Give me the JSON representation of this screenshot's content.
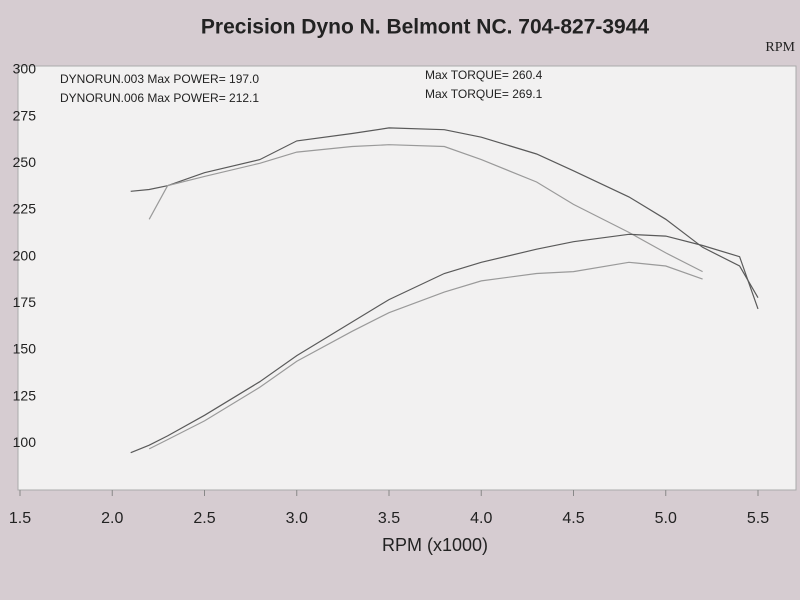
{
  "chart_data": {
    "type": "line",
    "title": "Precision Dyno  N. Belmont NC. 704-827-3944",
    "corner_label": "RPM",
    "x_label": "RPM (x1000)",
    "annotations": [
      "DYNORUN.003  Max POWER= 197.0",
      "Max TORQUE= 260.4",
      "DYNORUN.006  Max POWER= 212.1",
      "Max TORQUE= 269.1"
    ],
    "x": [
      2.1,
      2.2,
      2.3,
      2.5,
      2.8,
      3.0,
      3.3,
      3.5,
      3.8,
      4.0,
      4.3,
      4.5,
      4.8,
      5.0,
      5.2,
      5.4,
      5.5
    ],
    "series": [
      {
        "color": "#5a5a5a",
        "values": [
          235,
          236,
          238,
          245,
          252,
          262,
          266,
          269,
          268,
          264,
          255,
          246,
          232,
          220,
          205,
          195,
          178
        ]
      },
      {
        "color": "#9a9a9a",
        "values": [
          null,
          220,
          238,
          243,
          250,
          256,
          259,
          260,
          259,
          252,
          240,
          228,
          213,
          202,
          192,
          null,
          null
        ]
      },
      {
        "color": "#5a5a5a",
        "values": [
          95,
          99,
          104,
          115,
          133,
          147,
          165,
          177,
          191,
          197,
          204,
          208,
          212,
          211,
          206,
          200,
          172
        ]
      },
      {
        "color": "#9a9a9a",
        "values": [
          null,
          97,
          102,
          112,
          130,
          144,
          160,
          170,
          181,
          187,
          191,
          192,
          197,
          195,
          188,
          null,
          null
        ]
      }
    ],
    "xlim": [
      1.5,
      5.5
    ],
    "xticks": [
      {
        "value": 1.5,
        "label": "1.5"
      },
      {
        "value": 2,
        "label": "2.0"
      },
      {
        "value": 2.5,
        "label": "2.5"
      },
      {
        "value": 3,
        "label": "3.0"
      },
      {
        "value": 3.5,
        "label": "3.5"
      },
      {
        "value": 4,
        "label": "4.0"
      },
      {
        "value": 4.5,
        "label": "4.5"
      },
      {
        "value": 5,
        "label": "5.0"
      },
      {
        "value": 5.5,
        "label": "5.5"
      }
    ],
    "ylim": [
      75,
      300
    ],
    "yticks": [
      100,
      125,
      150,
      175,
      200,
      225,
      250,
      275,
      300
    ],
    "grid": false
  }
}
